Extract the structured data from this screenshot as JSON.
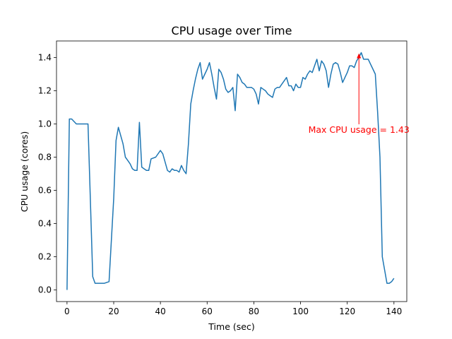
{
  "chart_data": {
    "type": "line",
    "title": "CPU usage over Time",
    "xlabel": "Time (sec)",
    "ylabel": "CPU usage (cores)",
    "xlim": [
      -4.5,
      145.5
    ],
    "ylim": [
      -0.07,
      1.5
    ],
    "x_ticks": [
      0,
      20,
      40,
      60,
      80,
      100,
      120,
      140
    ],
    "y_ticks": [
      0.0,
      0.2,
      0.4,
      0.6,
      0.8,
      1.0,
      1.2,
      1.4
    ],
    "x_tick_labels": [
      "0",
      "20",
      "40",
      "60",
      "80",
      "100",
      "120",
      "140"
    ],
    "y_tick_labels": [
      "0.0",
      "0.2",
      "0.4",
      "0.6",
      "0.8",
      "1.0",
      "1.2",
      "1.4"
    ],
    "grid": false,
    "line_color": "#1f77b4",
    "annotation_color": "#ff0000",
    "series": [
      {
        "x": [
          0,
          1,
          2,
          4,
          6,
          8,
          9,
          10,
          11,
          12,
          14,
          16,
          18,
          20,
          21,
          22,
          24,
          25,
          26,
          27,
          28,
          29,
          30,
          31,
          32,
          33,
          34,
          35,
          36,
          38,
          40,
          41,
          42,
          43,
          44,
          45,
          46,
          47,
          48,
          49,
          50,
          51,
          52,
          53,
          54,
          55,
          56,
          57,
          58,
          59,
          60,
          61,
          62,
          63,
          64,
          65,
          66,
          67,
          68,
          69,
          70,
          71,
          72,
          73,
          74,
          75,
          76,
          77,
          78,
          79,
          80,
          81,
          82,
          83,
          84,
          85,
          86,
          87,
          88,
          89,
          90,
          91,
          92,
          93,
          94,
          95,
          96,
          97,
          98,
          99,
          100,
          101,
          102,
          103,
          104,
          105,
          106,
          107,
          108,
          109,
          110,
          111,
          112,
          113,
          114,
          115,
          116,
          117,
          118,
          119,
          120,
          121,
          122,
          123,
          124,
          125,
          126,
          127,
          128,
          129,
          130,
          131,
          132,
          133,
          134,
          135,
          136,
          137,
          138,
          139,
          140
        ],
        "y": [
          0.0,
          1.03,
          1.03,
          1.0,
          1.0,
          1.0,
          1.0,
          0.55,
          0.08,
          0.04,
          0.04,
          0.04,
          0.05,
          0.55,
          0.9,
          0.98,
          0.88,
          0.8,
          0.78,
          0.76,
          0.73,
          0.72,
          0.72,
          1.01,
          0.74,
          0.73,
          0.72,
          0.72,
          0.79,
          0.8,
          0.84,
          0.82,
          0.77,
          0.72,
          0.71,
          0.73,
          0.72,
          0.72,
          0.71,
          0.75,
          0.72,
          0.7,
          0.88,
          1.12,
          1.2,
          1.27,
          1.33,
          1.37,
          1.27,
          1.3,
          1.33,
          1.37,
          1.3,
          1.22,
          1.15,
          1.33,
          1.31,
          1.27,
          1.21,
          1.19,
          1.2,
          1.22,
          1.08,
          1.3,
          1.28,
          1.25,
          1.24,
          1.22,
          1.22,
          1.22,
          1.21,
          1.18,
          1.12,
          1.22,
          1.21,
          1.2,
          1.18,
          1.17,
          1.16,
          1.21,
          1.22,
          1.22,
          1.24,
          1.26,
          1.28,
          1.23,
          1.23,
          1.2,
          1.24,
          1.22,
          1.22,
          1.28,
          1.27,
          1.3,
          1.32,
          1.31,
          1.35,
          1.39,
          1.32,
          1.38,
          1.36,
          1.32,
          1.22,
          1.3,
          1.36,
          1.37,
          1.36,
          1.31,
          1.25,
          1.28,
          1.31,
          1.35,
          1.35,
          1.34,
          1.38,
          1.4,
          1.43,
          1.39,
          1.39,
          1.39,
          1.36,
          1.33,
          1.3,
          1.07,
          0.8,
          0.2,
          0.12,
          0.04,
          0.04,
          0.05,
          0.07
        ]
      }
    ],
    "annotation": {
      "text": "Max CPU usage = 1.43",
      "point": [
        125,
        1.43
      ],
      "text_anchor_value": [
        125,
        0.93
      ]
    }
  }
}
